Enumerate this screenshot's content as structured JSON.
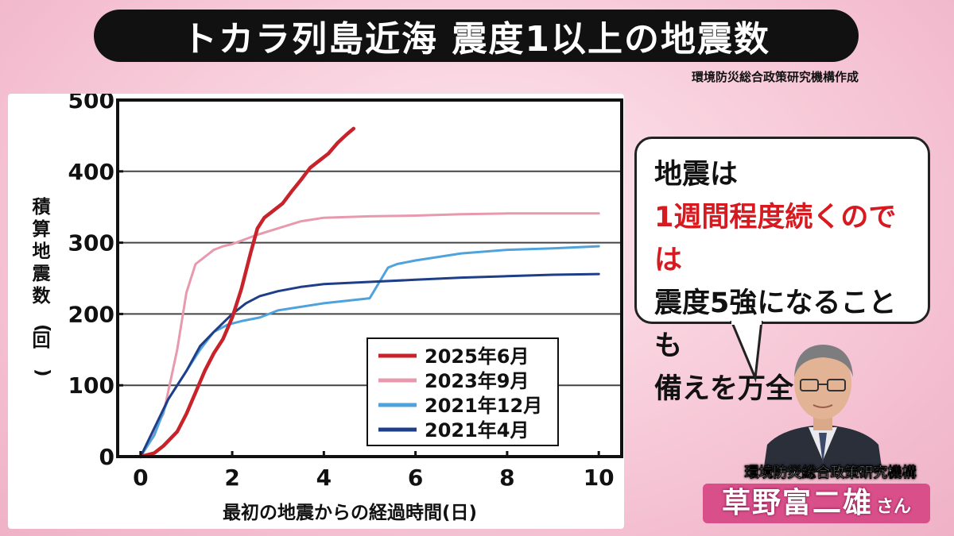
{
  "header": {
    "title": "トカラ列島近海 震度1以上の地震数",
    "source": "環境防災総合政策研究機構作成"
  },
  "bubble": {
    "line1": "地震は",
    "line2": "1週間程度続くのでは",
    "line3": "震度5強になることも",
    "line4": "備えを万全に"
  },
  "speaker": {
    "affiliation": "環境防災総合政策研究機構",
    "name": "草野富二雄",
    "suffix": "さん"
  },
  "chart_data": {
    "type": "line",
    "xlabel": "最初の地震からの経過時間(日)",
    "ylabel": "積算地震数(回)",
    "xlim": [
      -0.5,
      10.5
    ],
    "ylim": [
      0,
      500
    ],
    "xticks": [
      0,
      2,
      4,
      6,
      8,
      10
    ],
    "yticks": [
      0,
      100,
      200,
      300,
      400,
      500
    ],
    "grid": "horizontal",
    "legend_position": "bottom-right",
    "series": [
      {
        "name": "2025年6月",
        "color": "#c8222a",
        "x": [
          0,
          0.3,
          0.5,
          0.8,
          1.0,
          1.2,
          1.4,
          1.6,
          1.8,
          2.0,
          2.2,
          2.4,
          2.55,
          2.7,
          2.9,
          3.1,
          3.3,
          3.5,
          3.7,
          3.9,
          4.1,
          4.3,
          4.5,
          4.65
        ],
        "y": [
          0,
          5,
          15,
          35,
          60,
          90,
          120,
          145,
          165,
          195,
          235,
          285,
          320,
          335,
          345,
          355,
          372,
          388,
          405,
          415,
          425,
          440,
          452,
          460
        ]
      },
      {
        "name": "2023年9月",
        "color": "#e79aae",
        "x": [
          0,
          0.5,
          0.8,
          1.0,
          1.1,
          1.2,
          1.4,
          1.6,
          1.8,
          2.0,
          2.5,
          3.0,
          3.5,
          4.0,
          5.0,
          6.0,
          7.0,
          8.0,
          9.0,
          10.0
        ],
        "y": [
          0,
          60,
          150,
          230,
          250,
          270,
          280,
          290,
          295,
          298,
          310,
          320,
          330,
          335,
          337,
          338,
          340,
          341,
          341,
          341
        ]
      },
      {
        "name": "2021年12月",
        "color": "#4fa3dc",
        "x": [
          0,
          0.3,
          0.6,
          1.0,
          1.3,
          1.6,
          1.9,
          2.2,
          2.6,
          3.0,
          3.5,
          4.0,
          5.0,
          5.4,
          5.6,
          6.0,
          7.0,
          8.0,
          9.0,
          10.0
        ],
        "y": [
          0,
          30,
          80,
          120,
          150,
          175,
          185,
          190,
          195,
          205,
          210,
          215,
          222,
          265,
          270,
          275,
          285,
          290,
          292,
          295
        ]
      },
      {
        "name": "2021年4月",
        "color": "#1f3e88",
        "x": [
          0,
          0.3,
          0.6,
          1.0,
          1.3,
          1.6,
          2.0,
          2.3,
          2.6,
          3.0,
          3.5,
          4.0,
          5.0,
          6.0,
          7.0,
          8.0,
          9.0,
          10.0
        ],
        "y": [
          0,
          40,
          80,
          120,
          155,
          175,
          200,
          215,
          225,
          232,
          238,
          242,
          245,
          248,
          251,
          253,
          255,
          256
        ]
      }
    ]
  }
}
